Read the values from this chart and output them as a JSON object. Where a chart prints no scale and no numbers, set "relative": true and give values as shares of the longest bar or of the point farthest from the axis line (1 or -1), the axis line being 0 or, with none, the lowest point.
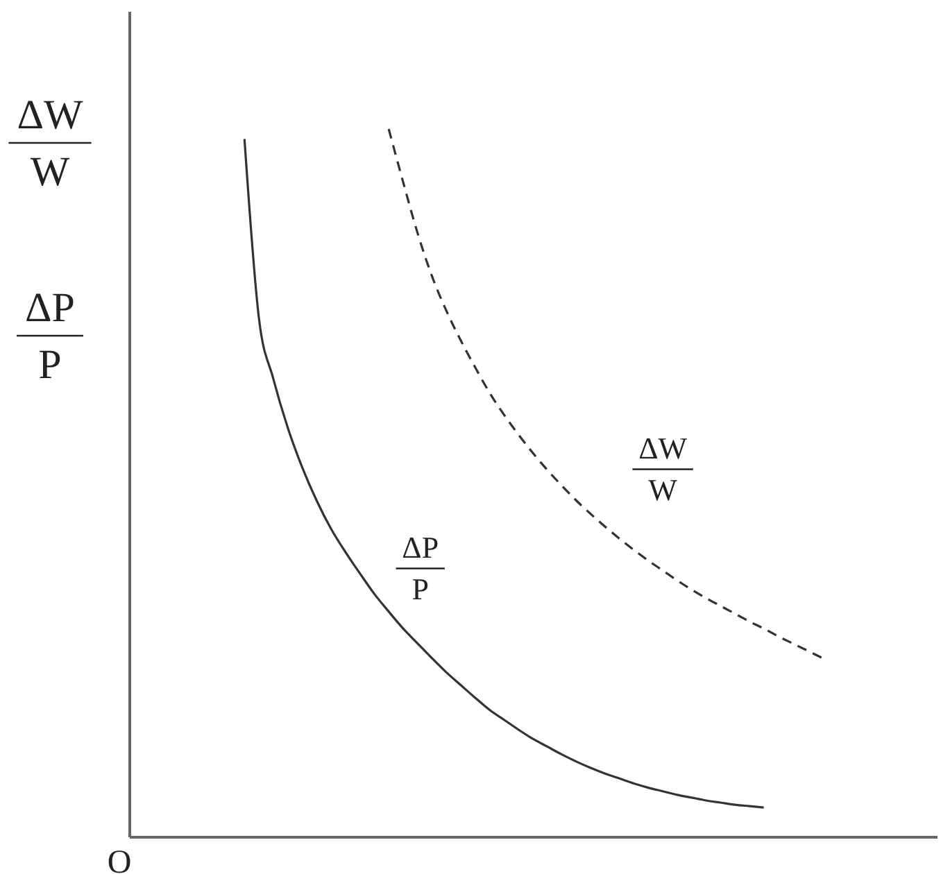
{
  "chart_data": {
    "type": "line",
    "relative": true,
    "ylabel": "ΔW\nW\nΔP\nP",
    "annotations": [
      "O"
    ],
    "categories": [
      null,
      null,
      null,
      null,
      null,
      null,
      null,
      null,
      null,
      null,
      null,
      null,
      null,
      null,
      null,
      null,
      null,
      null,
      null,
      null,
      null,
      null,
      null,
      null,
      null,
      null,
      null,
      null,
      null,
      null,
      null,
      null,
      null,
      null,
      null,
      null,
      null,
      null,
      null,
      null,
      null,
      null,
      null,
      null,
      null,
      null,
      null,
      null,
      null,
      null,
      null,
      null,
      null,
      null,
      null,
      null,
      null
    ],
    "series": [
      {
        "name": "ΔP\nP",
        "color": "#333333",
        "line_style": "solid",
        "values": [
          null,
          null,
          null,
          null,
          null,
          null,
          null,
          null,
          0.986,
          0.733,
          0.647,
          0.578,
          0.522,
          0.475,
          0.435,
          0.402,
          0.372,
          0.343,
          0.318,
          0.294,
          0.273,
          0.252,
          0.232,
          0.214,
          0.196,
          0.179,
          0.165,
          0.151,
          0.138,
          0.127,
          0.116,
          0.106,
          0.097,
          0.089,
          0.082,
          0.075,
          0.069,
          0.064,
          0.059,
          0.055,
          0.051,
          0.048,
          0.045,
          0.043,
          0.041,
          null,
          null,
          null,
          null,
          null,
          null,
          null,
          null,
          null,
          null,
          null,
          null
        ]
      },
      {
        "name": "ΔW\nW",
        "color": "#333333",
        "line_style": "dashed",
        "values": [
          null,
          null,
          null,
          null,
          null,
          null,
          null,
          null,
          null,
          null,
          null,
          null,
          null,
          null,
          null,
          null,
          null,
          null,
          1,
          0.925,
          0.853,
          0.792,
          0.743,
          0.701,
          0.663,
          0.627,
          0.596,
          0.568,
          0.542,
          0.518,
          0.496,
          0.475,
          0.456,
          0.438,
          0.421,
          0.405,
          0.39,
          0.376,
          0.362,
          0.349,
          0.337,
          0.326,
          0.315,
          0.304,
          0.294,
          0.283,
          0.273,
          0.263,
          0.253,
          null,
          null,
          null,
          null,
          null,
          null,
          null,
          null
        ]
      }
    ]
  }
}
